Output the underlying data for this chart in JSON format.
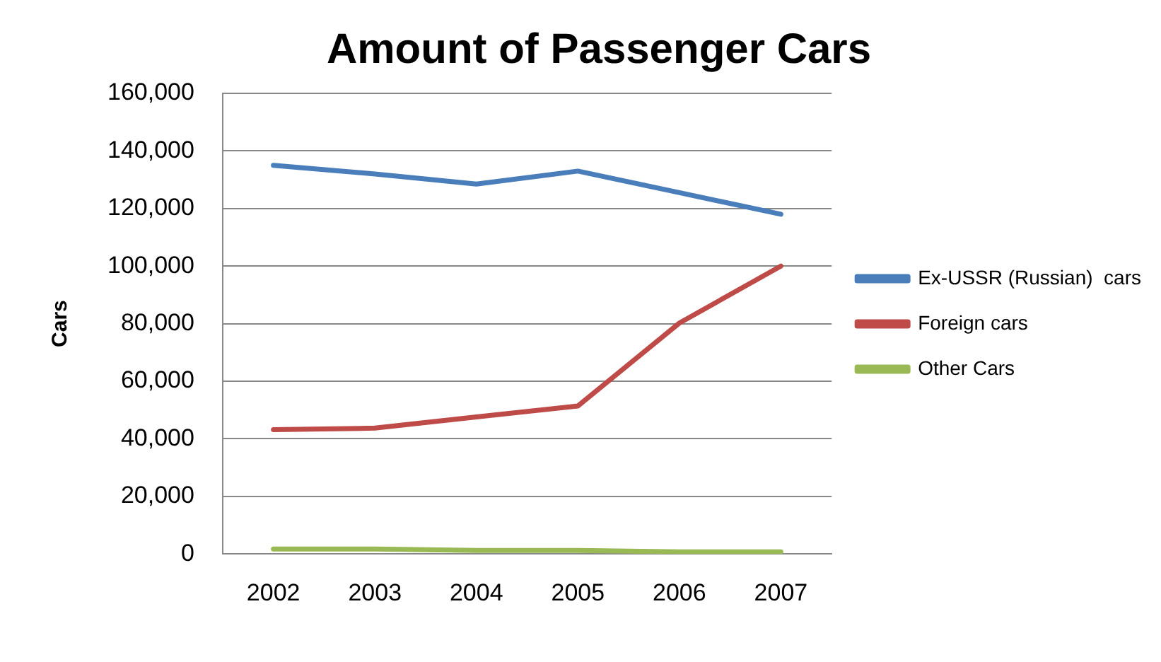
{
  "chart_data": {
    "type": "line",
    "title": "Amount of Passenger Cars",
    "ylabel": "Cars",
    "categories": [
      "2002",
      "2003",
      "2004",
      "2005",
      "2006",
      "2007"
    ],
    "series": [
      {
        "name": "Ex-USSR (Russian)  cars",
        "color": "#4a7ebb",
        "values": [
          135000,
          132000,
          128500,
          133000,
          125500,
          118000
        ]
      },
      {
        "name": "Foreign cars",
        "color": "#be4b48",
        "values": [
          43200,
          43700,
          47600,
          51400,
          80200,
          100000
        ]
      },
      {
        "name": "Other Cars",
        "color": "#98b954",
        "values": [
          1700,
          1700,
          1200,
          1200,
          700,
          700
        ]
      }
    ],
    "ylim": [
      0,
      160000
    ],
    "yticks": [
      0,
      {
        "value": 20000,
        "label": "20,000"
      },
      {
        "value": 40000,
        "label": "40,000"
      },
      {
        "value": 60000,
        "label": "60,000"
      },
      {
        "value": 80000,
        "label": "80,000"
      },
      {
        "value": 100000,
        "label": "100,000"
      },
      {
        "value": 120000,
        "label": "120,000"
      },
      {
        "value": 140000,
        "label": "140,000"
      },
      {
        "value": 160000,
        "label": "160,000"
      }
    ],
    "grid": "y",
    "legend": "right",
    "marker": "none"
  }
}
